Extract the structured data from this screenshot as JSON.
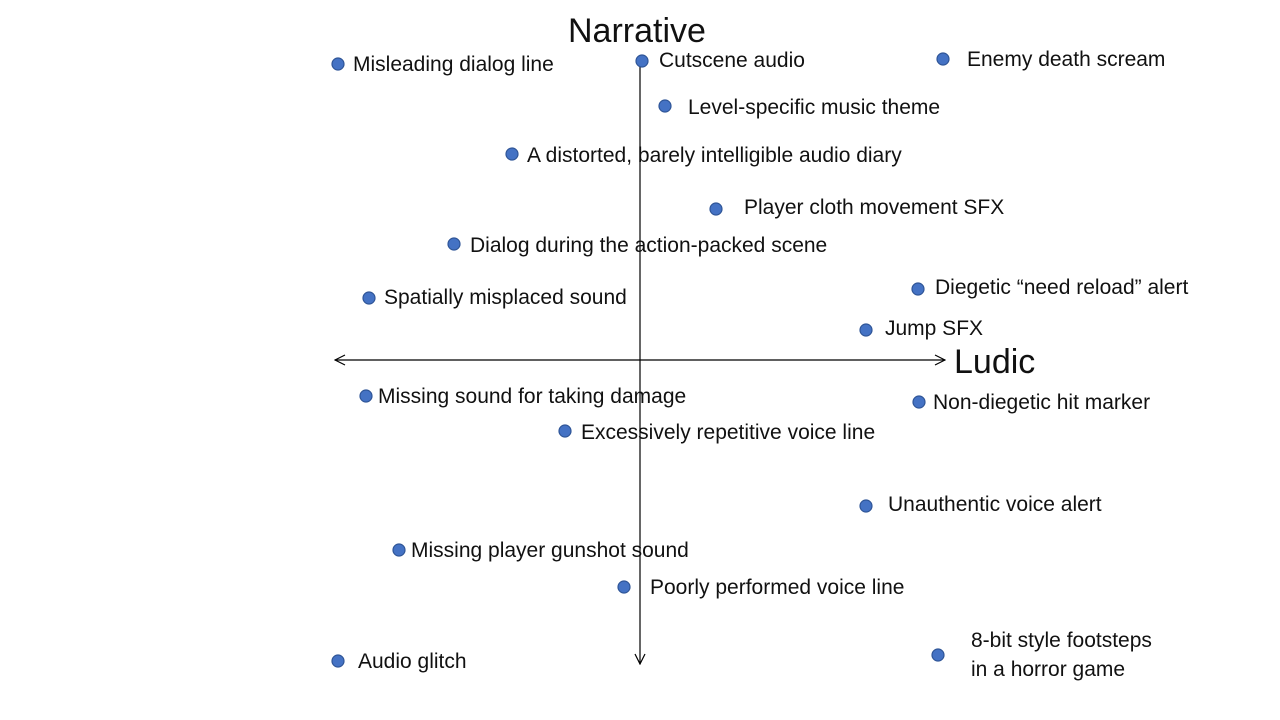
{
  "axes": {
    "vertical_label": "Narrative",
    "horizontal_label": "Ludic"
  },
  "colors": {
    "dot_fill": "#4472c4",
    "dot_stroke": "#2f5597",
    "axis": "#000000",
    "text": "#111111"
  },
  "items": [
    {
      "label": "Misleading dialog line"
    },
    {
      "label": "Cutscene audio"
    },
    {
      "label": "Enemy death scream"
    },
    {
      "label": "Level-specific music theme"
    },
    {
      "label": "A distorted, barely intelligible audio diary"
    },
    {
      "label": "Player cloth movement SFX"
    },
    {
      "label": "Dialog during the action-packed scene"
    },
    {
      "label": "Diegetic “need reload” alert"
    },
    {
      "label": "Spatially misplaced sound"
    },
    {
      "label": "Jump SFX"
    },
    {
      "label": "Missing sound for taking damage"
    },
    {
      "label": "Non-diegetic hit marker"
    },
    {
      "label": "Excessively repetitive voice line"
    },
    {
      "label": "Unauthentic voice alert"
    },
    {
      "label": "Missing player gunshot sound"
    },
    {
      "label": "Poorly performed voice line"
    },
    {
      "label": "Audio glitch"
    },
    {
      "label": "8-bit style footsteps",
      "label_line2": "in a horror game"
    }
  ]
}
